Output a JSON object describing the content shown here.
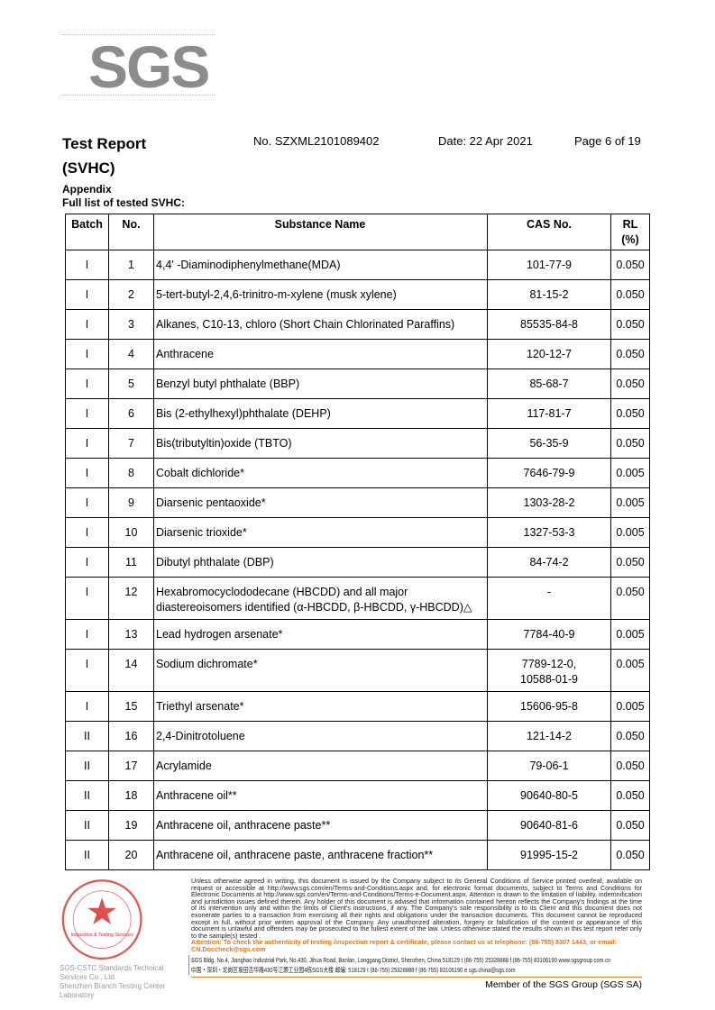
{
  "logo": {
    "text": "SGS"
  },
  "header": {
    "title_line1": "Test Report",
    "title_line2": "(SVHC)",
    "report_no": "No. SZXML2101089402",
    "date": "Date: 22 Apr 2021",
    "page": "Page 6 of 19"
  },
  "appendix": {
    "label": "Appendix",
    "subtitle": "Full list of tested SVHC:"
  },
  "table": {
    "headers": [
      "Batch",
      "No.",
      "Substance Name",
      "CAS No.",
      "RL (%)"
    ],
    "rows": [
      {
        "batch": "I",
        "no": "1",
        "name": "4,4' -Diaminodiphenylmethane(MDA)",
        "cas": "101-77-9",
        "rl": "0.050"
      },
      {
        "batch": "I",
        "no": "2",
        "name": "5-tert-butyl-2,4,6-trinitro-m-xylene (musk xylene)",
        "cas": "81-15-2",
        "rl": "0.050"
      },
      {
        "batch": "I",
        "no": "3",
        "name": "Alkanes, C10-13, chloro (Short Chain Chlorinated Paraffins)",
        "cas": "85535-84-8",
        "rl": "0.050"
      },
      {
        "batch": "I",
        "no": "4",
        "name": "Anthracene",
        "cas": "120-12-7",
        "rl": "0.050"
      },
      {
        "batch": "I",
        "no": "5",
        "name": "Benzyl butyl phthalate (BBP)",
        "cas": "85-68-7",
        "rl": "0.050"
      },
      {
        "batch": "I",
        "no": "6",
        "name": "Bis (2-ethylhexyl)phthalate (DEHP)",
        "cas": "117-81-7",
        "rl": "0.050"
      },
      {
        "batch": "I",
        "no": "7",
        "name": "Bis(tributyltin)oxide (TBTO)",
        "cas": "56-35-9",
        "rl": "0.050"
      },
      {
        "batch": "I",
        "no": "8",
        "name": "Cobalt dichloride*",
        "cas": "7646-79-9",
        "rl": "0.005"
      },
      {
        "batch": "I",
        "no": "9",
        "name": "Diarsenic pentaoxide*",
        "cas": "1303-28-2",
        "rl": "0.005"
      },
      {
        "batch": "I",
        "no": "10",
        "name": "Diarsenic trioxide*",
        "cas": "1327-53-3",
        "rl": "0.005"
      },
      {
        "batch": "I",
        "no": "11",
        "name": "Dibutyl phthalate (DBP)",
        "cas": "84-74-2",
        "rl": "0.050"
      },
      {
        "batch": "I",
        "no": "12",
        "name": "Hexabromocyclododecane (HBCDD) and all major diastereoisomers identified (α-HBCDD, β-HBCDD, γ-HBCDD)△",
        "cas": "-",
        "rl": "0.050"
      },
      {
        "batch": "I",
        "no": "13",
        "name": "Lead hydrogen arsenate*",
        "cas": "7784-40-9",
        "rl": "0.005"
      },
      {
        "batch": "I",
        "no": "14",
        "name": "Sodium dichromate*",
        "cas": "7789-12-0, 10588-01-9",
        "rl": "0.005"
      },
      {
        "batch": "I",
        "no": "15",
        "name": "Triethyl arsenate*",
        "cas": "15606-95-8",
        "rl": "0.005"
      },
      {
        "batch": "II",
        "no": "16",
        "name": "2,4-Dinitrotoluene",
        "cas": "121-14-2",
        "rl": "0.050"
      },
      {
        "batch": "II",
        "no": "17",
        "name": "Acrylamide",
        "cas": "79-06-1",
        "rl": "0.050"
      },
      {
        "batch": "II",
        "no": "18",
        "name": "Anthracene oil**",
        "cas": "90640-80-5",
        "rl": "0.050"
      },
      {
        "batch": "II",
        "no": "19",
        "name": "Anthracene oil, anthracene paste**",
        "cas": "90640-81-6",
        "rl": "0.050"
      },
      {
        "batch": "II",
        "no": "20",
        "name": "Anthracene oil, anthracene paste, anthracene fraction**",
        "cas": "91995-15-2",
        "rl": "0.050"
      }
    ]
  },
  "footer": {
    "disclaimer": "Unless otherwise agreed in writing, this document is issued by the Company subject to its General Conditions of Service printed overleaf, available on request or accessible at http://www.sgs.com/en/Terms-and-Conditions.aspx and, for electronic format documents, subject to Terms and Conditions for Electronic Documents at http://www.sgs.com/en/Terms-and-Conditions/Terms-e-Document.aspx. Attention is drawn to the limitation of liability, indemnification and jurisdiction issues defined therein. Any holder of this document is advised that information contained hereon reflects the Company's findings at the time of its intervention only and within the limits of Client's instructions, if any. The Company's sole responsibility is to its Client and this document does not exonerate parties to a transaction from exercising all their rights and obligations under the transaction documents. This document cannot be reproduced except in full, without prior written approval of the Company. Any unauthorized alteration, forgery or falsification of the content or appearance of this document is unlawful and offenders may be prosecuted to the fullest extent of the law. Unless otherwise stated the results shown in this test report refer only to the sample(s) tested .",
    "attention": "Attention: To check the authenticity of testing /inspection report & certificate, please contact us at telephone: (86-755) 8307 1443, or email: CN.Doccheck@sgs.com",
    "address_en": "SGS Bldg, No.4, Jianghao Industrial Park, No.430, Jihua Road, Banlan, Longgang District, Shenzhen, China  518129   t (86-755) 25328888   f (86-755) 83106190   www.sgsgroup.com.cn",
    "address_cn": "中国・深圳・龙岗区坂田吉华路430号江灏工业园4栋SGS大楼   邮编: 518129   t (86-755) 25328888   f (86-755) 83106190   e sgs.china@sgs.com",
    "company_line1": "SGS-CSTC Standards Technical Services Co., Ltd.",
    "company_line2": "Shenzhen Branch Testing Center Laboratory",
    "stamp_text": "Inspection & Testing Services",
    "member": "Member of the SGS Group (SGS SA)"
  },
  "colors": {
    "accent": "#e07a1f",
    "logo_gray": "#8c8c8c",
    "stamp_red": "#d9302c"
  }
}
